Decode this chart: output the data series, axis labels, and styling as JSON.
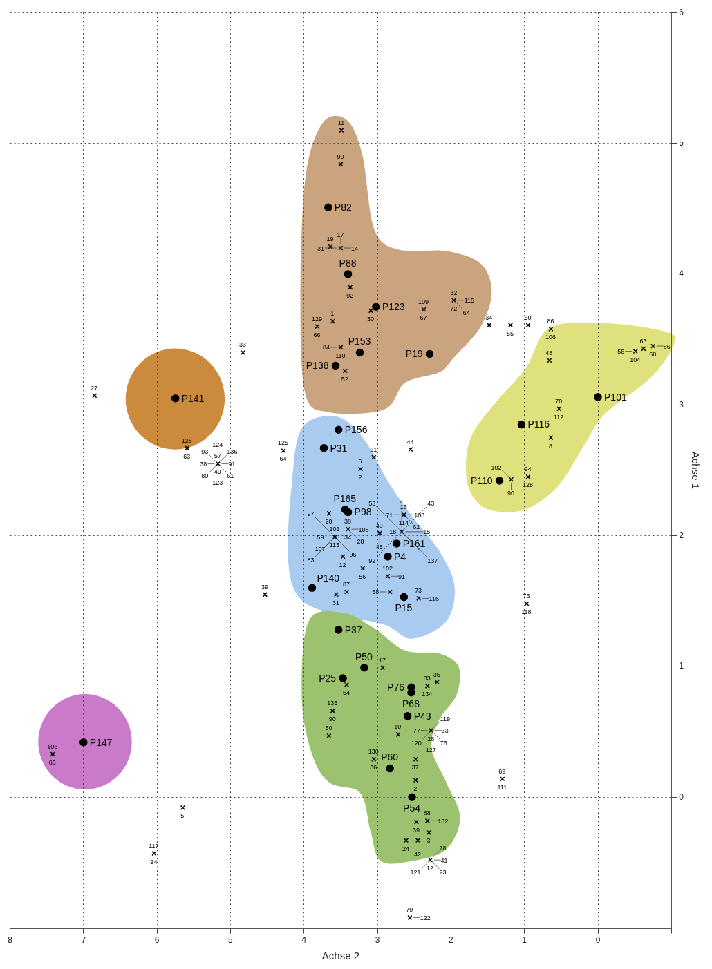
{
  "chart_data": {
    "type": "scatter",
    "xlabel": "Achse 2",
    "ylabel": "Achse 1",
    "xlim": [
      8,
      -1
    ],
    "ylim": [
      -1,
      6
    ],
    "xticks": [
      8,
      7,
      6,
      5,
      4,
      3,
      2,
      1,
      0,
      {
        "value": -1,
        "label": null
      }
    ],
    "yticks": [
      {
        "value": -1,
        "label": null
      },
      0,
      1,
      2,
      3,
      4,
      5,
      6
    ],
    "grid": true,
    "series": [
      {
        "marker": "circle",
        "color": "#000000",
        "x": [
          7.0,
          5.75,
          3.67,
          3.4,
          3.02,
          3.57,
          3.24,
          2.29,
          3.73,
          3.53,
          3.44,
          3.4,
          3.89,
          2.86,
          2.74,
          2.64,
          3.53,
          3.18,
          3.47,
          2.54,
          2.54,
          2.59,
          2.83,
          2.53,
          1.34,
          1.04,
          0.0
        ],
        "values": [
          0.42,
          3.05,
          4.51,
          4.0,
          3.75,
          3.3,
          3.4,
          3.39,
          2.67,
          2.81,
          2.2,
          2.18,
          1.6,
          1.84,
          1.94,
          1.53,
          1.28,
          0.99,
          0.91,
          0.84,
          0.8,
          0.62,
          0.22,
          0.0,
          2.42,
          2.85,
          3.06
        ],
        "value_labels": [
          "P147",
          "P141",
          "P82",
          "P88",
          "P123",
          "P138",
          "P153",
          "P19",
          "P31",
          "P156",
          "P165",
          "P98",
          "P140",
          "P4",
          "P161",
          "P15",
          "P37",
          "P50",
          "P25",
          "P76",
          "P68",
          "P43",
          "P60",
          "P54",
          "P110",
          "P116",
          "P101"
        ]
      },
      {
        "marker": "cross",
        "color": "#000000",
        "x": [
          3.49,
          3.5,
          3.64,
          3.5,
          3.37,
          3.61,
          3.82,
          3.09,
          3.5,
          3.44,
          2.37,
          1.96,
          1.48,
          1.19,
          0.95,
          0.64,
          0.66,
          -0.51,
          -0.62,
          -0.75,
          0.53,
          0.64,
          0.95,
          1.18,
          3.05,
          2.55,
          3.23,
          2.64,
          5.17,
          4.28,
          4.83,
          6.85,
          5.59,
          4.53,
          3.66,
          3.58,
          3.47,
          3.42,
          3.56,
          3.4,
          2.97,
          2.67,
          3.2,
          2.86,
          2.83,
          2.44,
          0.97,
          3.42,
          2.93,
          2.32,
          2.19,
          2.72,
          2.27,
          3.05,
          2.48,
          2.48,
          1.3,
          2.47,
          2.32,
          2.3,
          2.61,
          2.45,
          2.28,
          2.56,
          3.61,
          3.66,
          7.42,
          5.65,
          6.04
        ],
        "values": [
          5.1,
          4.84,
          4.21,
          4.2,
          3.9,
          3.64,
          3.6,
          3.72,
          3.44,
          3.26,
          3.73,
          3.8,
          3.61,
          3.61,
          3.61,
          3.58,
          3.34,
          3.41,
          3.43,
          3.45,
          2.97,
          2.75,
          2.45,
          2.43,
          2.6,
          2.66,
          2.51,
          2.16,
          2.55,
          2.65,
          3.4,
          3.07,
          2.67,
          1.55,
          2.17,
          1.99,
          1.84,
          1.57,
          1.55,
          2.05,
          2.02,
          2.03,
          1.75,
          1.69,
          1.57,
          1.52,
          1.48,
          0.86,
          0.99,
          0.85,
          0.88,
          0.48,
          0.51,
          0.29,
          0.29,
          0.13,
          0.14,
          -0.19,
          -0.18,
          -0.27,
          -0.33,
          -0.33,
          -0.48,
          -0.92,
          0.66,
          0.47,
          0.33,
          -0.08,
          -0.43
        ]
      }
    ],
    "annotations": [
      {
        "text": "11",
        "x": 3.49,
        "y": 5.1
      },
      {
        "text": "90",
        "x": 3.5,
        "y": 4.84
      },
      {
        "text": "19",
        "x": 3.64,
        "y": 4.21
      },
      {
        "text": "14",
        "x": 3.5,
        "y": 4.2
      },
      {
        "text": "17",
        "x": 3.5,
        "y": 4.2
      },
      {
        "text": "31",
        "x": 3.5,
        "y": 4.2
      },
      {
        "text": "92",
        "x": 3.37,
        "y": 3.9
      },
      {
        "text": "1",
        "x": 3.61,
        "y": 3.64
      },
      {
        "text": "129",
        "x": 3.82,
        "y": 3.6
      },
      {
        "text": "66",
        "x": 3.82,
        "y": 3.6
      },
      {
        "text": "30",
        "x": 3.09,
        "y": 3.72
      },
      {
        "text": "110",
        "x": 3.5,
        "y": 3.44
      },
      {
        "text": "84",
        "x": 3.5,
        "y": 3.44
      },
      {
        "text": "52",
        "x": 3.44,
        "y": 3.26
      },
      {
        "text": "109",
        "x": 2.37,
        "y": 3.73
      },
      {
        "text": "67",
        "x": 2.37,
        "y": 3.73
      },
      {
        "text": "32",
        "x": 1.96,
        "y": 3.8
      },
      {
        "text": "72",
        "x": 1.96,
        "y": 3.8
      },
      {
        "text": "115",
        "x": 1.96,
        "y": 3.8
      },
      {
        "text": "64",
        "x": 1.96,
        "y": 3.8
      },
      {
        "text": "34",
        "x": 1.48,
        "y": 3.61
      },
      {
        "text": "55",
        "x": 1.19,
        "y": 3.61
      },
      {
        "text": "50",
        "x": 0.95,
        "y": 3.61
      },
      {
        "text": "86",
        "x": 0.64,
        "y": 3.58
      },
      {
        "text": "106",
        "x": 0.64,
        "y": 3.58
      },
      {
        "text": "48",
        "x": 0.66,
        "y": 3.34
      },
      {
        "text": "104",
        "x": -0.51,
        "y": 3.41
      },
      {
        "text": "56",
        "x": -0.51,
        "y": 3.41
      },
      {
        "text": "63",
        "x": -0.62,
        "y": 3.43
      },
      {
        "text": "68",
        "x": -0.75,
        "y": 3.45
      },
      {
        "text": "86",
        "x": -0.75,
        "y": 3.45
      },
      {
        "text": "70",
        "x": 0.53,
        "y": 2.97
      },
      {
        "text": "112",
        "x": 0.53,
        "y": 2.97
      },
      {
        "text": "8",
        "x": 0.64,
        "y": 2.75
      },
      {
        "text": "94",
        "x": 0.95,
        "y": 2.45
      },
      {
        "text": "128",
        "x": 0.95,
        "y": 2.45
      },
      {
        "text": "90",
        "x": 1.18,
        "y": 2.43
      },
      {
        "text": "102",
        "x": 1.18,
        "y": 2.43
      },
      {
        "text": "21",
        "x": 3.05,
        "y": 2.6
      },
      {
        "text": "44",
        "x": 2.55,
        "y": 2.66
      },
      {
        "text": "6",
        "x": 3.23,
        "y": 2.51
      },
      {
        "text": "2",
        "x": 3.23,
        "y": 2.51
      },
      {
        "text": "16",
        "x": 2.64,
        "y": 2.16
      },
      {
        "text": "114",
        "x": 2.64,
        "y": 2.16
      },
      {
        "text": "103",
        "x": 2.64,
        "y": 2.16
      },
      {
        "text": "71",
        "x": 2.64,
        "y": 2.16
      },
      {
        "text": "62",
        "x": 2.64,
        "y": 2.16
      },
      {
        "text": "57",
        "x": 5.17,
        "y": 2.55
      },
      {
        "text": "49",
        "x": 5.17,
        "y": 2.55
      },
      {
        "text": "38",
        "x": 5.17,
        "y": 2.55
      },
      {
        "text": "80",
        "x": 5.17,
        "y": 2.55
      },
      {
        "text": "93",
        "x": 5.17,
        "y": 2.55
      },
      {
        "text": "91",
        "x": 5.17,
        "y": 2.55
      },
      {
        "text": "61",
        "x": 5.17,
        "y": 2.55
      },
      {
        "text": "136",
        "x": 5.17,
        "y": 2.55
      },
      {
        "text": "124",
        "x": 5.17,
        "y": 2.55
      },
      {
        "text": "123",
        "x": 5.17,
        "y": 2.55
      },
      {
        "text": "125",
        "x": 4.28,
        "y": 2.65
      },
      {
        "text": "64",
        "x": 4.28,
        "y": 2.65
      },
      {
        "text": "33",
        "x": 4.83,
        "y": 3.4
      },
      {
        "text": "27",
        "x": 6.85,
        "y": 3.07
      },
      {
        "text": "128",
        "x": 5.59,
        "y": 2.67
      },
      {
        "text": "63",
        "x": 5.59,
        "y": 2.67
      },
      {
        "text": "39",
        "x": 4.53,
        "y": 1.55
      },
      {
        "text": "20",
        "x": 3.66,
        "y": 2.17
      },
      {
        "text": "101",
        "x": 3.58,
        "y": 1.99
      },
      {
        "text": "113",
        "x": 3.58,
        "y": 1.99
      },
      {
        "text": "107",
        "x": 3.58,
        "y": 1.99
      },
      {
        "text": "59",
        "x": 3.58,
        "y": 1.99
      },
      {
        "text": "96",
        "x": 3.58,
        "y": 1.99
      },
      {
        "text": "83",
        "x": 3.58,
        "y": 1.99
      },
      {
        "text": "97",
        "x": 3.58,
        "y": 1.99
      },
      {
        "text": "12",
        "x": 3.47,
        "y": 1.84
      },
      {
        "text": "87",
        "x": 3.42,
        "y": 1.57
      },
      {
        "text": "31",
        "x": 3.56,
        "y": 1.55
      },
      {
        "text": "34",
        "x": 3.4,
        "y": 2.05
      },
      {
        "text": "108",
        "x": 3.4,
        "y": 2.05
      },
      {
        "text": "28",
        "x": 3.4,
        "y": 2.05
      },
      {
        "text": "38",
        "x": 3.4,
        "y": 2.05
      },
      {
        "text": "45",
        "x": 2.97,
        "y": 2.02
      },
      {
        "text": "40",
        "x": 2.97,
        "y": 2.02
      },
      {
        "text": "15",
        "x": 2.67,
        "y": 2.03
      },
      {
        "text": "137",
        "x": 2.67,
        "y": 2.03
      },
      {
        "text": "43",
        "x": 2.67,
        "y": 2.03
      },
      {
        "text": "92",
        "x": 2.67,
        "y": 2.03
      },
      {
        "text": "53",
        "x": 2.67,
        "y": 2.03
      },
      {
        "text": "18",
        "x": 2.67,
        "y": 2.03
      },
      {
        "text": "7",
        "x": 2.67,
        "y": 2.03
      },
      {
        "text": "4",
        "x": 2.67,
        "y": 2.03
      },
      {
        "text": "56",
        "x": 3.2,
        "y": 1.75
      },
      {
        "text": "102",
        "x": 2.86,
        "y": 1.69
      },
      {
        "text": "91",
        "x": 2.86,
        "y": 1.69
      },
      {
        "text": "58",
        "x": 2.83,
        "y": 1.57
      },
      {
        "text": "73",
        "x": 2.44,
        "y": 1.52
      },
      {
        "text": "116",
        "x": 2.44,
        "y": 1.52
      },
      {
        "text": "76",
        "x": 0.97,
        "y": 1.48
      },
      {
        "text": "118",
        "x": 0.97,
        "y": 1.48
      },
      {
        "text": "54",
        "x": 3.42,
        "y": 0.86
      },
      {
        "text": "17",
        "x": 2.93,
        "y": 0.99
      },
      {
        "text": "134",
        "x": 2.32,
        "y": 0.85
      },
      {
        "text": "33",
        "x": 2.32,
        "y": 0.85
      },
      {
        "text": "35",
        "x": 2.19,
        "y": 0.88
      },
      {
        "text": "10",
        "x": 2.72,
        "y": 0.48
      },
      {
        "text": "28",
        "x": 2.27,
        "y": 0.51
      },
      {
        "text": "33",
        "x": 2.27,
        "y": 0.51
      },
      {
        "text": "77",
        "x": 2.27,
        "y": 0.51
      },
      {
        "text": "76",
        "x": 2.27,
        "y": 0.51
      },
      {
        "text": "119",
        "x": 2.27,
        "y": 0.51
      },
      {
        "text": "120",
        "x": 2.27,
        "y": 0.51
      },
      {
        "text": "127",
        "x": 2.27,
        "y": 0.51
      },
      {
        "text": "130",
        "x": 3.05,
        "y": 0.29
      },
      {
        "text": "36",
        "x": 3.05,
        "y": 0.29
      },
      {
        "text": "37",
        "x": 2.48,
        "y": 0.29
      },
      {
        "text": "2",
        "x": 2.48,
        "y": 0.13
      },
      {
        "text": "69",
        "x": 1.3,
        "y": 0.14
      },
      {
        "text": "111",
        "x": 1.3,
        "y": 0.14
      },
      {
        "text": "39",
        "x": 2.47,
        "y": -0.19
      },
      {
        "text": "88",
        "x": 2.32,
        "y": -0.18
      },
      {
        "text": "132",
        "x": 2.32,
        "y": -0.18
      },
      {
        "text": "3",
        "x": 2.3,
        "y": -0.27
      },
      {
        "text": "24",
        "x": 2.61,
        "y": -0.33
      },
      {
        "text": "42",
        "x": 2.45,
        "y": -0.33
      },
      {
        "text": "12",
        "x": 2.28,
        "y": -0.48
      },
      {
        "text": "41",
        "x": 2.28,
        "y": -0.48
      },
      {
        "text": "23",
        "x": 2.28,
        "y": -0.48
      },
      {
        "text": "78",
        "x": 2.28,
        "y": -0.48
      },
      {
        "text": "121",
        "x": 2.28,
        "y": -0.48
      },
      {
        "text": "79",
        "x": 2.56,
        "y": -0.92
      },
      {
        "text": "122",
        "x": 2.56,
        "y": -0.92
      },
      {
        "text": "135",
        "x": 3.61,
        "y": 0.66
      },
      {
        "text": "90",
        "x": 3.61,
        "y": 0.66
      },
      {
        "text": "50",
        "x": 3.66,
        "y": 0.47
      },
      {
        "text": "106",
        "x": 7.42,
        "y": 0.33
      },
      {
        "text": "65",
        "x": 7.42,
        "y": 0.33
      },
      {
        "text": "5",
        "x": 5.65,
        "y": -0.08
      },
      {
        "text": "117",
        "x": 6.04,
        "y": -0.43
      },
      {
        "text": "24",
        "x": 6.04,
        "y": -0.43
      }
    ]
  }
}
